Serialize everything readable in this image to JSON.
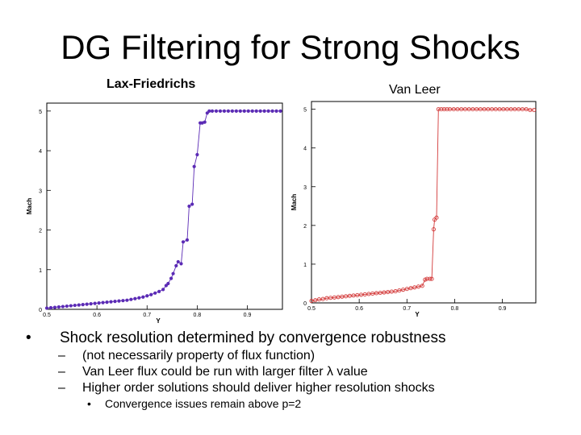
{
  "slide": {
    "title": "DG Filtering for Strong Shocks"
  },
  "captions": {
    "left": "Lax-Friedrichs",
    "right": "Van Leer"
  },
  "bullets": {
    "main": "Shock resolution determined by convergence robustness",
    "subs": [
      "(not necessarily property of flux function)",
      "Van Leer flux could be run with larger filter λ value",
      "Higher order solutions should deliver higher resolution shocks"
    ],
    "subsub": "Convergence issues remain above p=2"
  },
  "chart_data": [
    {
      "type": "line",
      "title": "",
      "xlabel": "Y",
      "ylabel": "Mach",
      "xlim": [
        0.5,
        0.97
      ],
      "ylim": [
        0,
        5.2
      ],
      "xticks": [
        "0.5",
        "0.6",
        "0.7",
        "0.8",
        "0.9"
      ],
      "yticks": [
        "0",
        "1",
        "2",
        "3",
        "4",
        "5"
      ],
      "marker_color": "#5b2bb5",
      "series": [
        {
          "x": [
            0.5,
            0.508,
            0.516,
            0.524,
            0.532,
            0.54,
            0.548,
            0.556,
            0.564,
            0.572,
            0.58,
            0.588,
            0.596,
            0.604,
            0.612,
            0.62,
            0.628,
            0.636,
            0.644,
            0.652,
            0.66,
            0.668,
            0.676,
            0.684,
            0.692,
            0.7,
            0.708,
            0.716,
            0.724,
            0.732,
            0.738,
            0.742,
            0.748,
            0.752,
            0.758,
            0.762,
            0.768,
            0.772,
            0.78,
            0.784,
            0.79,
            0.794,
            0.8,
            0.806,
            0.81,
            0.815,
            0.82,
            0.824,
            0.83,
            0.838,
            0.846,
            0.854,
            0.862,
            0.87,
            0.878,
            0.886,
            0.894,
            0.902,
            0.91,
            0.918,
            0.926,
            0.934,
            0.942,
            0.95,
            0.958,
            0.966
          ],
          "y": [
            0.03,
            0.04,
            0.05,
            0.06,
            0.07,
            0.08,
            0.09,
            0.1,
            0.11,
            0.12,
            0.13,
            0.14,
            0.15,
            0.16,
            0.17,
            0.18,
            0.19,
            0.2,
            0.21,
            0.22,
            0.23,
            0.25,
            0.27,
            0.29,
            0.31,
            0.34,
            0.37,
            0.41,
            0.45,
            0.5,
            0.6,
            0.65,
            0.78,
            0.9,
            1.1,
            1.2,
            1.15,
            1.7,
            1.75,
            2.6,
            2.65,
            3.6,
            3.9,
            4.7,
            4.7,
            4.72,
            4.95,
            5.0,
            5.0,
            5.0,
            5.0,
            5.0,
            5.0,
            5.0,
            5.0,
            5.0,
            5.0,
            5.0,
            5.0,
            5.0,
            5.0,
            5.0,
            5.0,
            5.0,
            5.0,
            5.0
          ]
        }
      ]
    },
    {
      "type": "line",
      "title": "",
      "xlabel": "Y",
      "ylabel": "Mach",
      "xlim": [
        0.5,
        0.97
      ],
      "ylim": [
        0,
        5.2
      ],
      "xticks": [
        "0.5",
        "0.6",
        "0.7",
        "0.8",
        "0.9"
      ],
      "yticks": [
        "0",
        "1",
        "2",
        "3",
        "4",
        "5"
      ],
      "marker_color": "#d33a3a",
      "series": [
        {
          "x": [
            0.5,
            0.508,
            0.516,
            0.524,
            0.532,
            0.54,
            0.548,
            0.556,
            0.564,
            0.572,
            0.58,
            0.588,
            0.596,
            0.604,
            0.612,
            0.62,
            0.628,
            0.636,
            0.644,
            0.652,
            0.66,
            0.668,
            0.676,
            0.684,
            0.692,
            0.7,
            0.708,
            0.716,
            0.724,
            0.732,
            0.738,
            0.742,
            0.748,
            0.752,
            0.756,
            0.758,
            0.762,
            0.766,
            0.772,
            0.778,
            0.784,
            0.79,
            0.798,
            0.806,
            0.814,
            0.822,
            0.83,
            0.838,
            0.846,
            0.854,
            0.862,
            0.87,
            0.878,
            0.886,
            0.894,
            0.902,
            0.91,
            0.918,
            0.926,
            0.934,
            0.942,
            0.95,
            0.958,
            0.966
          ],
          "y": [
            0.05,
            0.07,
            0.09,
            0.1,
            0.12,
            0.13,
            0.14,
            0.15,
            0.16,
            0.17,
            0.18,
            0.19,
            0.2,
            0.21,
            0.22,
            0.23,
            0.24,
            0.25,
            0.26,
            0.27,
            0.28,
            0.29,
            0.3,
            0.32,
            0.34,
            0.36,
            0.38,
            0.4,
            0.42,
            0.44,
            0.6,
            0.62,
            0.62,
            0.62,
            1.9,
            2.15,
            2.2,
            5.0,
            5.0,
            5.0,
            5.0,
            5.0,
            5.0,
            5.0,
            5.0,
            5.0,
            5.0,
            5.0,
            5.0,
            5.0,
            5.0,
            5.0,
            5.0,
            5.0,
            5.0,
            5.0,
            5.0,
            5.0,
            5.0,
            5.0,
            5.0,
            5.0,
            4.98,
            4.98
          ]
        }
      ]
    }
  ]
}
